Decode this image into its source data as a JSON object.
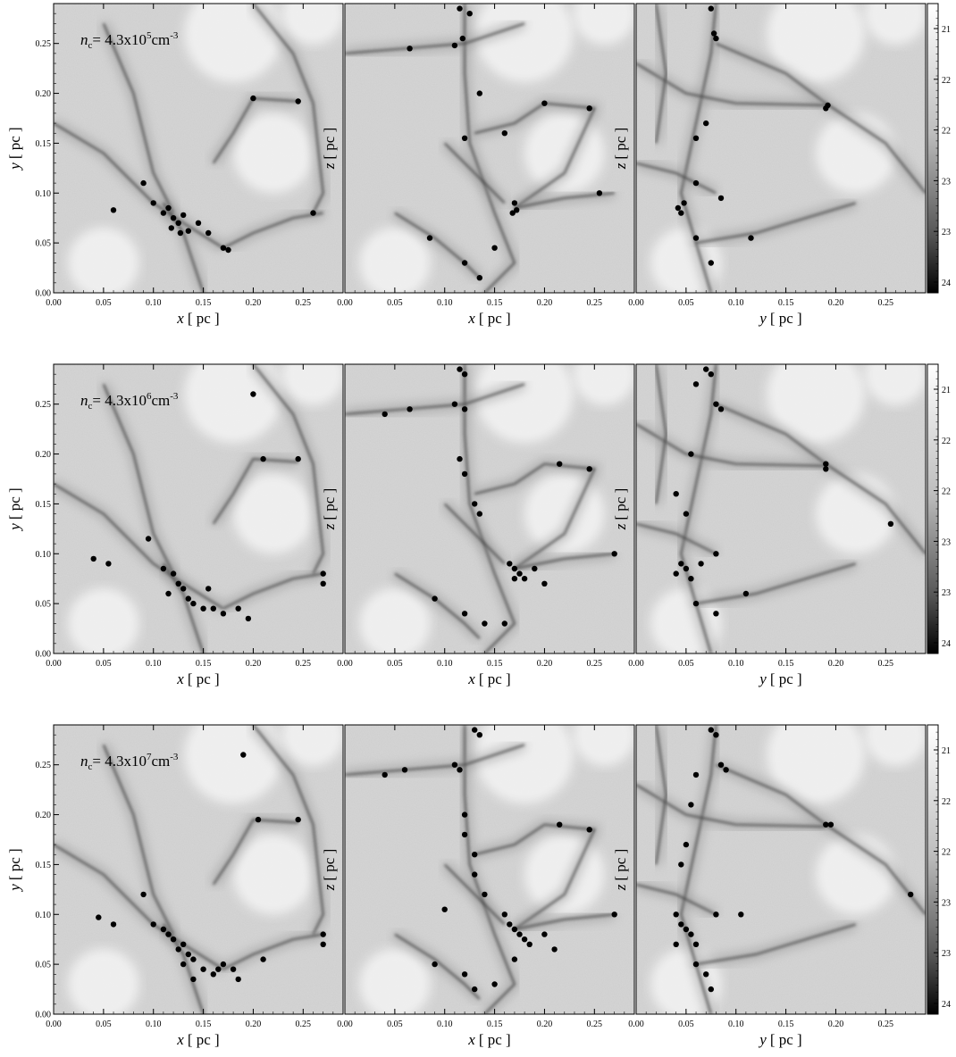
{
  "chart_data": {
    "type": "scatter",
    "description_rows": [
      "n_c = 4.3x10^5 cm^-3",
      "n_c = 4.3x10^6 cm^-3",
      "n_c = 4.3x10^7 cm^-3"
    ],
    "rows": [
      {
        "label_base": "n",
        "label_sub": "c",
        "label_mid": "= 4.3x10",
        "label_exp": "5",
        "label_unit": "cm",
        "label_unit_exp": "-3"
      },
      {
        "label_base": "n",
        "label_sub": "c",
        "label_mid": "= 4.3x10",
        "label_exp": "6",
        "label_unit": "cm",
        "label_unit_exp": "-3"
      },
      {
        "label_base": "n",
        "label_sub": "c",
        "label_mid": "= 4.3x10",
        "label_exp": "7",
        "label_unit": "cm",
        "label_unit_exp": "-3"
      }
    ],
    "columns": [
      {
        "xlabel_var": "x",
        "ylabel_var": "y",
        "xlabel_unit": "[ pc ]"
      },
      {
        "xlabel_var": "x",
        "ylabel_var": "z",
        "xlabel_unit": "[ pc ]"
      },
      {
        "xlabel_var": "y",
        "ylabel_var": "z",
        "xlabel_unit": "[ pc ]"
      }
    ],
    "ylabel_unit": "[ pc ]",
    "xlim": [
      0,
      0.29
    ],
    "ylim": [
      0,
      0.29
    ],
    "xticks": [
      "0.00",
      "0.05",
      "0.10",
      "0.15",
      "0.20",
      "0.25"
    ],
    "yticks": [
      "0.00",
      "0.05",
      "0.10",
      "0.15",
      "0.20",
      "0.25"
    ],
    "colorbar": {
      "ticks": [
        "21",
        "22",
        "22",
        "23",
        "23",
        "24"
      ],
      "scale": "grayscale, dark = high column density"
    },
    "sinks": [
      [
        [
          [
            0.06,
            0.083
          ],
          [
            0.09,
            0.11
          ],
          [
            0.11,
            0.08
          ],
          [
            0.115,
            0.085
          ],
          [
            0.12,
            0.075
          ],
          [
            0.125,
            0.07
          ],
          [
            0.13,
            0.078
          ],
          [
            0.118,
            0.065
          ],
          [
            0.127,
            0.06
          ],
          [
            0.135,
            0.062
          ],
          [
            0.145,
            0.07
          ],
          [
            0.155,
            0.06
          ],
          [
            0.17,
            0.045
          ],
          [
            0.175,
            0.043
          ],
          [
            0.2,
            0.195
          ],
          [
            0.245,
            0.192
          ],
          [
            0.26,
            0.08
          ],
          [
            0.1,
            0.09
          ]
        ],
        [
          [
            0.115,
            0.285
          ],
          [
            0.125,
            0.28
          ],
          [
            0.118,
            0.255
          ],
          [
            0.065,
            0.245
          ],
          [
            0.11,
            0.248
          ],
          [
            0.12,
            0.155
          ],
          [
            0.135,
            0.2
          ],
          [
            0.16,
            0.16
          ],
          [
            0.17,
            0.09
          ],
          [
            0.172,
            0.083
          ],
          [
            0.168,
            0.08
          ],
          [
            0.2,
            0.19
          ],
          [
            0.245,
            0.185
          ],
          [
            0.255,
            0.1
          ],
          [
            0.085,
            0.055
          ],
          [
            0.12,
            0.03
          ],
          [
            0.135,
            0.015
          ],
          [
            0.15,
            0.045
          ]
        ],
        [
          [
            0.075,
            0.285
          ],
          [
            0.078,
            0.26
          ],
          [
            0.08,
            0.255
          ],
          [
            0.07,
            0.17
          ],
          [
            0.06,
            0.155
          ],
          [
            0.06,
            0.11
          ],
          [
            0.042,
            0.085
          ],
          [
            0.045,
            0.08
          ],
          [
            0.048,
            0.09
          ],
          [
            0.085,
            0.095
          ],
          [
            0.19,
            0.185
          ],
          [
            0.192,
            0.188
          ],
          [
            0.115,
            0.055
          ],
          [
            0.075,
            0.03
          ],
          [
            0.06,
            0.055
          ]
        ]
      ],
      [
        [
          [
            0.04,
            0.095
          ],
          [
            0.055,
            0.09
          ],
          [
            0.095,
            0.115
          ],
          [
            0.11,
            0.085
          ],
          [
            0.12,
            0.08
          ],
          [
            0.125,
            0.07
          ],
          [
            0.13,
            0.065
          ],
          [
            0.115,
            0.06
          ],
          [
            0.135,
            0.055
          ],
          [
            0.14,
            0.05
          ],
          [
            0.15,
            0.045
          ],
          [
            0.16,
            0.045
          ],
          [
            0.17,
            0.04
          ],
          [
            0.155,
            0.065
          ],
          [
            0.185,
            0.045
          ],
          [
            0.21,
            0.195
          ],
          [
            0.245,
            0.195
          ],
          [
            0.27,
            0.08
          ],
          [
            0.27,
            0.07
          ],
          [
            0.195,
            0.035
          ],
          [
            0.2,
            0.26
          ]
        ],
        [
          [
            0.115,
            0.285
          ],
          [
            0.12,
            0.28
          ],
          [
            0.11,
            0.25
          ],
          [
            0.12,
            0.245
          ],
          [
            0.04,
            0.24
          ],
          [
            0.065,
            0.245
          ],
          [
            0.115,
            0.195
          ],
          [
            0.12,
            0.18
          ],
          [
            0.13,
            0.15
          ],
          [
            0.135,
            0.14
          ],
          [
            0.165,
            0.09
          ],
          [
            0.17,
            0.085
          ],
          [
            0.175,
            0.08
          ],
          [
            0.18,
            0.075
          ],
          [
            0.19,
            0.085
          ],
          [
            0.2,
            0.07
          ],
          [
            0.215,
            0.19
          ],
          [
            0.245,
            0.185
          ],
          [
            0.27,
            0.1
          ],
          [
            0.09,
            0.055
          ],
          [
            0.12,
            0.04
          ],
          [
            0.14,
            0.03
          ],
          [
            0.16,
            0.03
          ],
          [
            0.17,
            0.075
          ]
        ],
        [
          [
            0.07,
            0.285
          ],
          [
            0.075,
            0.28
          ],
          [
            0.08,
            0.25
          ],
          [
            0.085,
            0.245
          ],
          [
            0.06,
            0.27
          ],
          [
            0.055,
            0.2
          ],
          [
            0.04,
            0.16
          ],
          [
            0.05,
            0.14
          ],
          [
            0.045,
            0.09
          ],
          [
            0.05,
            0.085
          ],
          [
            0.04,
            0.08
          ],
          [
            0.055,
            0.075
          ],
          [
            0.065,
            0.09
          ],
          [
            0.08,
            0.1
          ],
          [
            0.06,
            0.05
          ],
          [
            0.08,
            0.04
          ],
          [
            0.11,
            0.06
          ],
          [
            0.19,
            0.19
          ],
          [
            0.19,
            0.185
          ],
          [
            0.255,
            0.13
          ]
        ]
      ],
      [
        [
          [
            0.045,
            0.097
          ],
          [
            0.06,
            0.09
          ],
          [
            0.09,
            0.12
          ],
          [
            0.1,
            0.09
          ],
          [
            0.11,
            0.085
          ],
          [
            0.115,
            0.08
          ],
          [
            0.12,
            0.075
          ],
          [
            0.13,
            0.07
          ],
          [
            0.125,
            0.065
          ],
          [
            0.135,
            0.06
          ],
          [
            0.14,
            0.055
          ],
          [
            0.15,
            0.045
          ],
          [
            0.16,
            0.04
          ],
          [
            0.165,
            0.045
          ],
          [
            0.17,
            0.05
          ],
          [
            0.18,
            0.045
          ],
          [
            0.185,
            0.035
          ],
          [
            0.14,
            0.035
          ],
          [
            0.13,
            0.05
          ],
          [
            0.205,
            0.195
          ],
          [
            0.245,
            0.195
          ],
          [
            0.27,
            0.08
          ],
          [
            0.27,
            0.07
          ],
          [
            0.19,
            0.26
          ],
          [
            0.21,
            0.055
          ]
        ],
        [
          [
            0.13,
            0.285
          ],
          [
            0.135,
            0.28
          ],
          [
            0.11,
            0.25
          ],
          [
            0.115,
            0.245
          ],
          [
            0.04,
            0.24
          ],
          [
            0.06,
            0.245
          ],
          [
            0.12,
            0.2
          ],
          [
            0.12,
            0.18
          ],
          [
            0.13,
            0.16
          ],
          [
            0.13,
            0.14
          ],
          [
            0.14,
            0.12
          ],
          [
            0.16,
            0.1
          ],
          [
            0.165,
            0.09
          ],
          [
            0.17,
            0.085
          ],
          [
            0.175,
            0.08
          ],
          [
            0.18,
            0.075
          ],
          [
            0.185,
            0.07
          ],
          [
            0.2,
            0.08
          ],
          [
            0.21,
            0.065
          ],
          [
            0.215,
            0.19
          ],
          [
            0.245,
            0.185
          ],
          [
            0.27,
            0.1
          ],
          [
            0.1,
            0.105
          ],
          [
            0.09,
            0.05
          ],
          [
            0.12,
            0.04
          ],
          [
            0.13,
            0.025
          ],
          [
            0.15,
            0.03
          ],
          [
            0.17,
            0.055
          ]
        ],
        [
          [
            0.075,
            0.285
          ],
          [
            0.08,
            0.28
          ],
          [
            0.085,
            0.25
          ],
          [
            0.09,
            0.245
          ],
          [
            0.06,
            0.24
          ],
          [
            0.055,
            0.21
          ],
          [
            0.05,
            0.17
          ],
          [
            0.045,
            0.15
          ],
          [
            0.04,
            0.1
          ],
          [
            0.045,
            0.09
          ],
          [
            0.05,
            0.085
          ],
          [
            0.055,
            0.08
          ],
          [
            0.04,
            0.07
          ],
          [
            0.06,
            0.07
          ],
          [
            0.08,
            0.1
          ],
          [
            0.105,
            0.1
          ],
          [
            0.06,
            0.05
          ],
          [
            0.07,
            0.04
          ],
          [
            0.075,
            0.025
          ],
          [
            0.19,
            0.19
          ],
          [
            0.195,
            0.19
          ],
          [
            0.275,
            0.12
          ]
        ]
      ]
    ]
  }
}
